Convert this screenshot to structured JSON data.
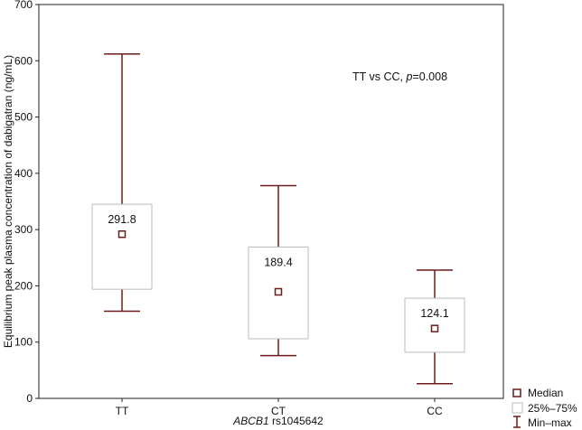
{
  "chart_data": {
    "type": "box",
    "categories": [
      "TT",
      "CT",
      "CC"
    ],
    "ylim": [
      0,
      700
    ],
    "yticks": [
      0,
      100,
      200,
      300,
      400,
      500,
      600,
      700
    ],
    "xlabel_italic": "ABCB1",
    "xlabel_rest": " rs1045642",
    "ylabel": "Equilibrium peak plasma concentration of dabigatran (ng/mL)",
    "annotation_prefix": "TT vs CC, ",
    "annotation_p": "p",
    "annotation_suffix": "=0.008",
    "boxes": [
      {
        "category": "TT",
        "min": 155,
        "q1": 194,
        "median": 291.8,
        "q3": 345,
        "max": 612,
        "median_label": "291.8"
      },
      {
        "category": "CT",
        "min": 76,
        "q1": 106,
        "median": 189.4,
        "q3": 269,
        "max": 378,
        "median_label": "189.4"
      },
      {
        "category": "CC",
        "min": 26,
        "q1": 82,
        "median": 124.1,
        "q3": 178,
        "max": 228,
        "median_label": "124.1"
      }
    ],
    "legend": [
      {
        "label": "Median",
        "symbol": "square-marker"
      },
      {
        "label": "25%–75%",
        "symbol": "box"
      },
      {
        "label": "Min–max",
        "symbol": "whisker"
      }
    ],
    "grid": false,
    "colors": {
      "whisker": "#6b1c1c",
      "box_stroke": "#bdbdbd",
      "axis": "#222222"
    }
  }
}
